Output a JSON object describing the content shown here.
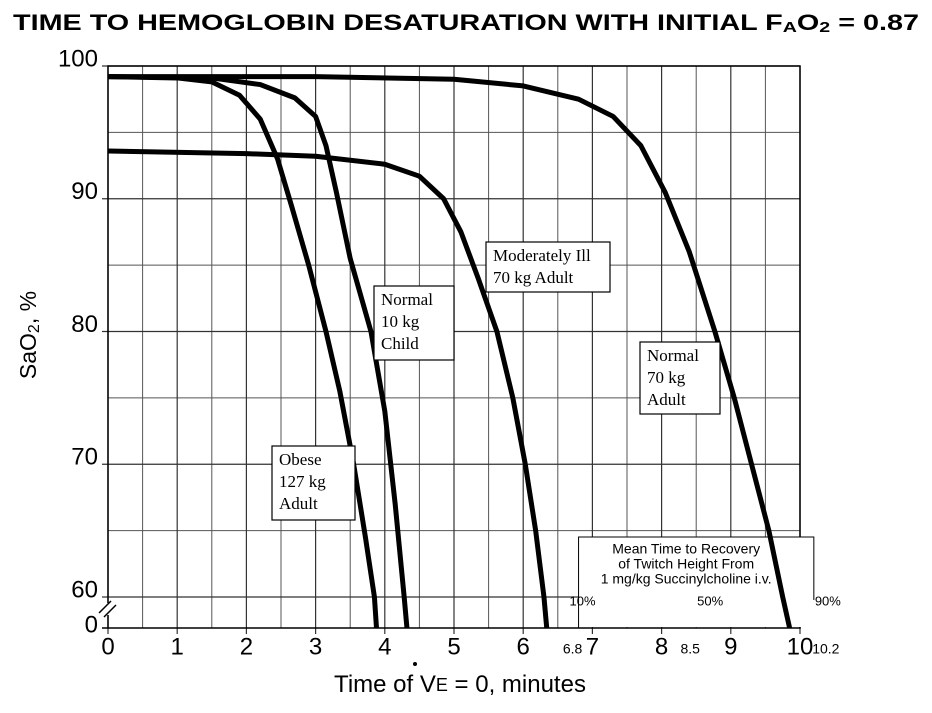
{
  "chart_data": {
    "type": "line",
    "title": [
      "TIME TO HEMOGLOBIN DESATURATION WITH INITIAL F",
      "A",
      "O",
      "2",
      " = 0.87"
    ],
    "ylabel": [
      "SaO",
      "2",
      ", %"
    ],
    "xlabel": [
      "Time of V",
      "E",
      " = 0, minutes"
    ],
    "xlim": [
      0,
      10
    ],
    "ylim": [
      0,
      100
    ],
    "axis_break": [
      0,
      60
    ],
    "xticks": [
      0,
      1,
      2,
      3,
      4,
      5,
      6,
      7,
      8,
      9,
      10
    ],
    "yticks": [
      0,
      60,
      70,
      80,
      90,
      100
    ],
    "x_grid": [
      0.5,
      1.5,
      2.5,
      3.5,
      4.5,
      5.5,
      6.5,
      7.5,
      8.5,
      9.5
    ],
    "y_grid": [
      65,
      75,
      85,
      95
    ],
    "x2ticks": [
      6.8,
      8.5,
      10.2
    ],
    "grid": true,
    "color": "#000000",
    "series": [
      {
        "label_lines": [
          "Obese",
          "127 kg",
          "Adult"
        ],
        "x": [
          0,
          1,
          1.5,
          1.9,
          2.2,
          2.45,
          2.65,
          2.9,
          3.15,
          3.35,
          3.55,
          3.72,
          3.85,
          3.88
        ],
        "values": [
          99.2,
          99.1,
          98.8,
          97.8,
          96,
          93,
          89.5,
          85,
          80,
          75.5,
          70,
          64.5,
          60,
          0
        ]
      },
      {
        "label_lines": [
          "Normal",
          "10 kg",
          "Child"
        ],
        "x": [
          0,
          1.5,
          2.2,
          2.7,
          3.0,
          3.15,
          3.3,
          3.5,
          3.8,
          4.0,
          4.15,
          4.28,
          4.32
        ],
        "values": [
          99.2,
          99.1,
          98.6,
          97.6,
          96.2,
          94,
          90.5,
          85.5,
          80,
          74,
          67,
          60,
          0
        ]
      },
      {
        "label_lines": [
          "Moderately Ill",
          "70 kg Adult"
        ],
        "x": [
          0,
          2,
          3,
          4,
          4.5,
          4.85,
          5.1,
          5.35,
          5.62,
          5.85,
          6.03,
          6.18,
          6.3,
          6.34
        ],
        "values": [
          93.6,
          93.4,
          93.2,
          92.6,
          91.7,
          90,
          87.5,
          84,
          80,
          75,
          70,
          65,
          60,
          0
        ]
      },
      {
        "label_lines": [
          "Normal",
          "70 kg",
          "Adult"
        ],
        "x": [
          0,
          3,
          5,
          6,
          6.8,
          7.3,
          7.7,
          8.05,
          8.4,
          8.77,
          9.05,
          9.3,
          9.55,
          9.75,
          9.85
        ],
        "values": [
          99.2,
          99.2,
          99,
          98.5,
          97.5,
          96.2,
          94,
          90.5,
          86,
          80,
          75,
          70,
          65,
          60,
          0
        ]
      }
    ],
    "recovery_box": {
      "lines": [
        "Mean Time to Recovery",
        "of Twitch Height From",
        "1 mg/kg Succinylcholine i.v."
      ],
      "percent_labels": [
        "10%",
        "50%",
        "90%"
      ]
    }
  }
}
